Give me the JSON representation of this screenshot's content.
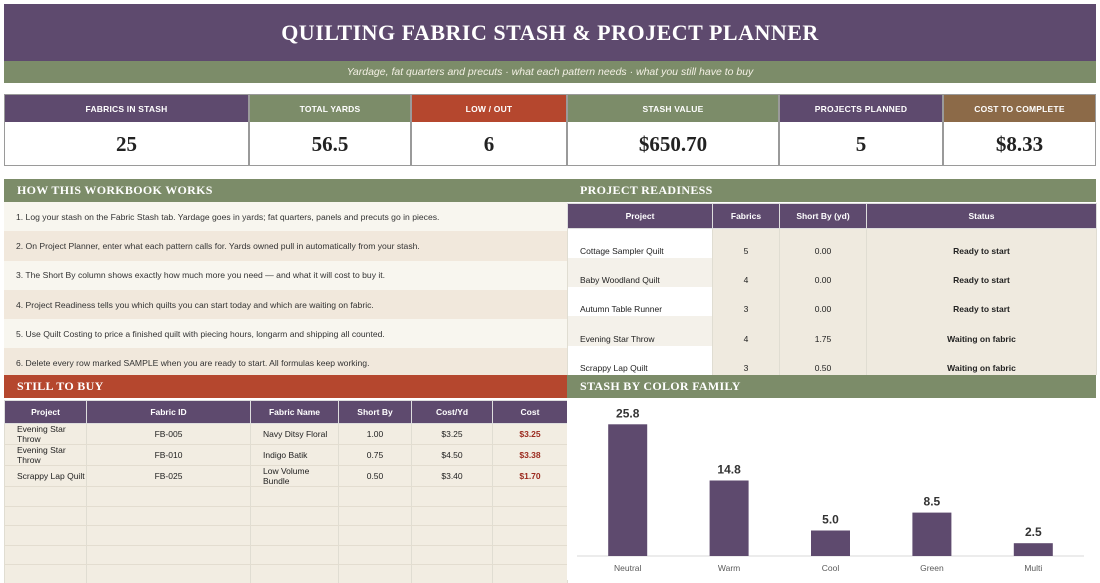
{
  "header": {
    "title": "QUILTING FABRIC STASH & PROJECT PLANNER",
    "subtitle": "Yardage, fat quarters and precuts · what each pattern needs · what you still have to buy"
  },
  "kpis": [
    {
      "label": "FABRICS IN STASH",
      "value": "25",
      "color": "#5e4a6e"
    },
    {
      "label": "TOTAL YARDS",
      "value": "56.5",
      "color": "#7c8c69"
    },
    {
      "label": "LOW / OUT",
      "value": "6",
      "color": "#b5472e"
    },
    {
      "label": "STASH VALUE",
      "value": "$650.70",
      "color": "#7c8c69"
    },
    {
      "label": "PROJECTS PLANNED",
      "value": "5",
      "color": "#5e4a6e"
    },
    {
      "label": "COST TO COMPLETE",
      "value": "$8.33",
      "color": "#8c6a48"
    }
  ],
  "how_it_works": {
    "title": "HOW THIS WORKBOOK WORKS",
    "steps": [
      "1.  Log your stash on the Fabric Stash tab. Yardage goes in yards; fat quarters, panels and precuts go in pieces.",
      "2.  On Project Planner, enter what each pattern calls for. Yards owned pull in automatically from your stash.",
      "3.  The Short By column shows exactly how much more you need — and what it will cost to buy it.",
      "4.  Project Readiness tells you which quilts you can start today and which are waiting on fabric.",
      "5.  Use Quilt Costing to price a finished quilt with piecing hours, longarm and shipping all counted.",
      "6.  Delete every row marked SAMPLE when you are ready to start. All formulas keep working."
    ]
  },
  "readiness": {
    "title": "PROJECT READINESS",
    "columns": [
      "Project",
      "Fabrics",
      "Short By (yd)",
      "Status"
    ],
    "rows": [
      [
        "Cottage Sampler Quilt",
        "5",
        "0.00",
        "Ready to start"
      ],
      [
        "Baby Woodland Quilt",
        "4",
        "0.00",
        "Ready to start"
      ],
      [
        "Autumn Table Runner",
        "3",
        "0.00",
        "Ready to start"
      ],
      [
        "Evening Star Throw",
        "4",
        "1.75",
        "Waiting on fabric"
      ],
      [
        "Scrappy Lap Quilt",
        "3",
        "0.50",
        "Waiting on fabric"
      ]
    ]
  },
  "still_to_buy": {
    "title": "STILL TO BUY",
    "columns": [
      "Project",
      "Fabric ID",
      "Fabric Name",
      "Short By",
      "Cost/Yd",
      "Cost"
    ],
    "rows": [
      [
        "Evening Star Throw",
        "FB-005",
        "Navy Ditsy Floral",
        "1.00",
        "$3.25",
        "$3.25"
      ],
      [
        "Evening Star Throw",
        "FB-010",
        "Indigo Batik",
        "0.75",
        "$4.50",
        "$3.38"
      ],
      [
        "Scrappy Lap Quilt",
        "FB-025",
        "Low Volume Bundle",
        "0.50",
        "$3.40",
        "$1.70"
      ],
      [
        "",
        "",
        "",
        "",
        "",
        ""
      ],
      [
        "",
        "",
        "",
        "",
        "",
        ""
      ],
      [
        "",
        "",
        "",
        "",
        "",
        ""
      ],
      [
        "",
        "",
        "",
        "",
        "",
        ""
      ],
      [
        "",
        "",
        "",
        "",
        "",
        ""
      ],
      [
        "",
        "",
        "",
        "",
        "",
        ""
      ]
    ]
  },
  "stash_chart": {
    "title": "STASH BY COLOR FAMILY"
  },
  "chart_data": {
    "type": "bar",
    "categories": [
      "Neutral",
      "Warm",
      "Cool",
      "Green",
      "Multi"
    ],
    "values": [
      25.8,
      14.8,
      5.0,
      8.5,
      2.5
    ],
    "value_labels": [
      "25.8",
      "14.8",
      "5.0",
      "8.5",
      "2.5"
    ],
    "ylim": [
      0,
      29
    ],
    "grid": false,
    "bar_color": "#5e4a6e"
  }
}
